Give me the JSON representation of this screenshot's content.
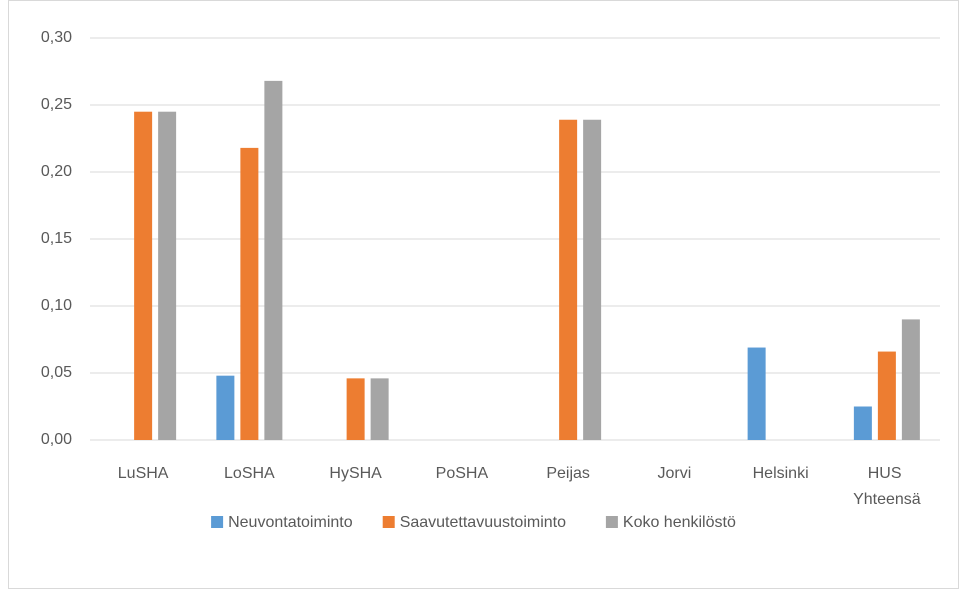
{
  "chart_data": {
    "type": "bar",
    "categories": [
      "LuSHA",
      "LoSHA",
      "HySHA",
      "PoSHA",
      "Peijas",
      "Jorvi",
      "Helsinki",
      "HUS Yhteensä"
    ],
    "series": [
      {
        "name": "Neuvontatoiminto",
        "color": "#5b9bd5",
        "values": [
          0,
          0.048,
          0,
          0,
          0,
          0,
          0.069,
          0.025
        ]
      },
      {
        "name": "Saavutettavuustoiminto",
        "color": "#ed7d31",
        "values": [
          0.245,
          0.218,
          0.046,
          0,
          0.239,
          0,
          0,
          0.066
        ]
      },
      {
        "name": "Koko henkilöstö",
        "color": "#a5a5a5",
        "values": [
          0.245,
          0.268,
          0.046,
          0,
          0.239,
          0,
          0,
          0.09
        ]
      }
    ],
    "ylim": [
      0,
      0.3
    ],
    "yticks": [
      {
        "value": 0,
        "label": "0,00"
      },
      {
        "value": 0.05,
        "label": "0,05"
      },
      {
        "value": 0.1,
        "label": "0,10"
      },
      {
        "value": 0.15,
        "label": "0,15"
      },
      {
        "value": 0.2,
        "label": "0,20"
      },
      {
        "value": 0.25,
        "label": "0,25"
      },
      {
        "value": 0.3,
        "label": "0,30"
      }
    ],
    "grid": true,
    "legend": "bottom"
  }
}
